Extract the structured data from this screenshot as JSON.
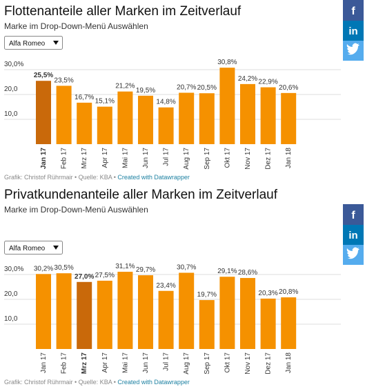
{
  "share_buttons": [
    "f",
    "in"
  ],
  "chart_data": [
    {
      "type": "bar",
      "title": "Flottenanteile aller Marken im Zeitverlauf",
      "subtitle": "Marke im Drop-Down-Menü Auswählen",
      "dropdown": "Alfa Romeo",
      "categories": [
        "Jan 17",
        "Feb 17",
        "Mrz 17",
        "Apr 17",
        "Mai 17",
        "Jun 17",
        "Jul 17",
        "Aug 17",
        "Sep 17",
        "Okt 17",
        "Nov 17",
        "Dez 17",
        "Jan 18"
      ],
      "values": [
        25.5,
        23.5,
        16.7,
        15.1,
        21.2,
        19.5,
        14.8,
        20.7,
        20.5,
        30.8,
        24.2,
        22.9,
        20.6
      ],
      "value_labels": [
        "25,5%",
        "23,5%",
        "16,7%",
        "15,1%",
        "21,2%",
        "19,5%",
        "14,8%",
        "20,7%",
        "20,5%",
        "30,8%",
        "24,2%",
        "22,9%",
        "20,6%"
      ],
      "color": "#f59100",
      "colors": [
        "#c9690a",
        "#f59100",
        "#f59100",
        "#f59100",
        "#f59100",
        "#f59100",
        "#f59100",
        "#f59100",
        "#f59100",
        "#f59100",
        "#f59100",
        "#f59100",
        "#f59100"
      ],
      "ylim": [
        0,
        30
      ],
      "yticks": [
        {
          "value": 10,
          "label": "10,0"
        },
        {
          "value": 20,
          "label": "20,0"
        },
        {
          "value": 30,
          "label": "30,0%"
        }
      ],
      "grid": true,
      "source": "Grafik: Christof Rührmair • Quelle: KBA •",
      "credit": "Created with Datawrapper"
    },
    {
      "type": "bar",
      "title": "Privatkundenanteile aller Marken im Zeitverlauf",
      "subtitle": "Marke im Drop-Down-Menü Auswählen",
      "dropdown": "Alfa Romeo",
      "categories": [
        "Jan 17",
        "Feb 17",
        "Mrz 17",
        "Apr 17",
        "Mai 17",
        "Jun 17",
        "Jul 17",
        "Aug 17",
        "Sep 17",
        "Okt 17",
        "Nov 17",
        "Dez 17",
        "Jan 18"
      ],
      "values": [
        30.2,
        30.5,
        27.0,
        27.5,
        31.1,
        29.7,
        23.4,
        30.7,
        19.7,
        29.1,
        28.6,
        20.3,
        20.8
      ],
      "value_labels": [
        "30,2%",
        "30,5%",
        "27,0%",
        "27,5%",
        "31,1%",
        "29,7%",
        "23,4%",
        "30,7%",
        "19,7%",
        "29,1%",
        "28,6%",
        "20,3%",
        "20,8%"
      ],
      "color": "#f59100",
      "colors": [
        "#f59100",
        "#f59100",
        "#c9690a",
        "#f59100",
        "#f59100",
        "#f59100",
        "#f59100",
        "#f59100",
        "#f59100",
        "#f59100",
        "#f59100",
        "#f59100",
        "#f59100"
      ],
      "ylim": [
        0,
        30
      ],
      "yticks": [
        {
          "value": 10,
          "label": "10,0"
        },
        {
          "value": 20,
          "label": "20,0"
        },
        {
          "value": 30,
          "label": "30,0%"
        }
      ],
      "grid": true,
      "source": "Grafik: Christof Rührmair • Quelle: KBA •",
      "credit": "Created with Datawrapper"
    }
  ]
}
